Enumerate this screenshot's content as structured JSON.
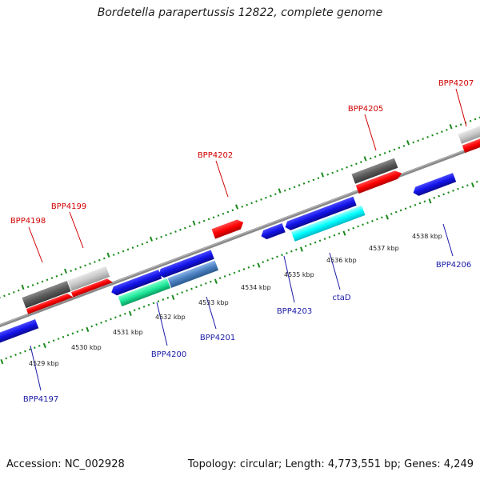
{
  "title": "Bordetella parapertussis 12822, complete genome",
  "footer": {
    "accession": "Accession: NC_002928",
    "summary": "Topology: circular; Length: 4,773,551 bp; Genes: 4,249"
  },
  "colors": {
    "backbone": "#8a8a8a",
    "tick_green": "#1a8a1a",
    "label_red": "#d00000",
    "label_blue": "#1a1aa6",
    "gene_red": "#ff0000",
    "gene_blue": "#1212e8",
    "gene_darkgray": "#5a5a5a",
    "gene_lightgray": "#c8c8c8",
    "gene_cyan": "#00ffff",
    "gene_green": "#1ee899",
    "gene_steel": "#4a7fc0"
  },
  "scale_labels": [
    "4529 kbp",
    "4530 kbp",
    "4531 kbp",
    "4532 kbp",
    "4533 kbp",
    "4534 kbp",
    "4535 kbp",
    "4536 kbp",
    "4537 kbp",
    "4538 kbp"
  ],
  "top_labels": [
    "BPP4198",
    "BPP4199",
    "BPP4202",
    "BPP4205",
    "BPP4207"
  ],
  "bottom_labels": [
    "BPP4197",
    "BPP4200",
    "BPP4201",
    "BPP4203",
    "ctaD",
    "BPP4206"
  ]
}
